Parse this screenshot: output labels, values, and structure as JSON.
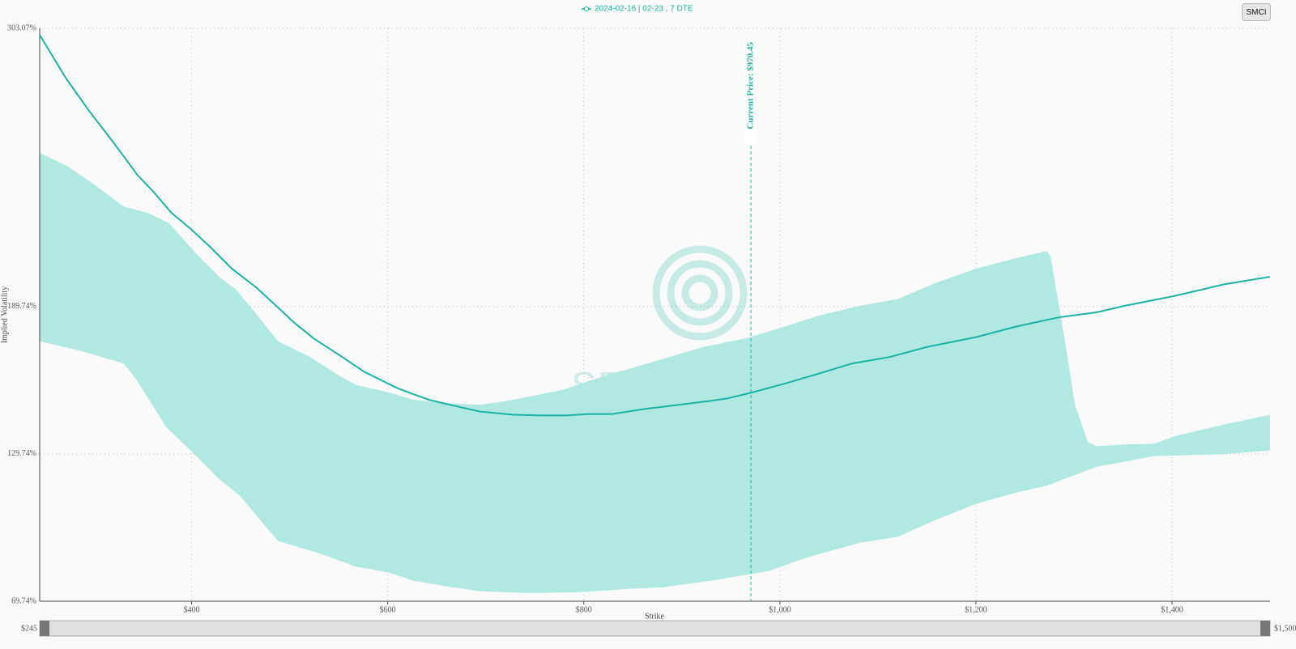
{
  "chart_data": {
    "type": "line",
    "button": "SMCI",
    "watermark": "SPOTGAMMA",
    "xlabel": "Strike",
    "ylabel": "Implied Volatility",
    "xlim": [
      245,
      1500
    ],
    "ylim": [
      69.74,
      303.07
    ],
    "xticks": [
      {
        "value": 400,
        "label": "$400"
      },
      {
        "value": 600,
        "label": "$600"
      },
      {
        "value": 800,
        "label": "$800"
      },
      {
        "value": 1000,
        "label": "$1,000"
      },
      {
        "value": 1200,
        "label": "$1,200"
      },
      {
        "value": 1400,
        "label": "$1,400"
      }
    ],
    "yticks": [
      {
        "value": 69.74,
        "label": "69.74%"
      },
      {
        "value": 129.74,
        "label": "129.74%"
      },
      {
        "value": 189.74,
        "label": "189.74%"
      },
      {
        "value": 303.07,
        "label": "303.07%"
      }
    ],
    "grid": true,
    "slider_labels": [
      "$245",
      "$1,500"
    ],
    "current_price": {
      "value": 970.45,
      "label": "Current Price: $970.45"
    },
    "series": [
      {
        "name": "2024-02-16 | 02-23 , 7 DTE",
        "color": "#1ab3a4",
        "x": [
          245,
          272,
          296,
          320,
          345,
          361,
          379,
          399,
          420,
          441,
          466,
          488,
          504,
          525,
          551,
          576,
          610,
          626,
          642,
          664,
          694,
          728,
          757,
          783,
          804,
          829,
          863,
          896,
          930,
          947,
          972,
          1006,
          1040,
          1074,
          1112,
          1150,
          1200,
          1242,
          1285,
          1323,
          1352,
          1403,
          1453,
          1500
        ],
        "values": [
          300.4,
          282.6,
          269.1,
          256.7,
          243.2,
          236.5,
          228.1,
          221.4,
          213.6,
          205.2,
          197.5,
          189.4,
          183.4,
          176.6,
          169.9,
          163.2,
          156.5,
          154.1,
          151.8,
          149.7,
          147.0,
          145.7,
          145.4,
          145.4,
          146.0,
          146.0,
          148.1,
          149.7,
          151.4,
          152.4,
          154.8,
          158.5,
          162.5,
          166.6,
          169.2,
          173.3,
          177.3,
          181.7,
          185.4,
          187.4,
          190.1,
          194.1,
          198.8,
          201.9
        ]
      }
    ],
    "band": {
      "color": "#b0e8e2",
      "upper": {
        "x": [
          245,
          272,
          297,
          331,
          356,
          377,
          403,
          428,
          445,
          466,
          488,
          521,
          551,
          568,
          601,
          626,
          660,
          694,
          728,
          778,
          821,
          871,
          922,
          964,
          998,
          1040,
          1082,
          1120,
          1158,
          1200,
          1242,
          1272,
          1276,
          1289,
          1301,
          1314,
          1323,
          1352,
          1382,
          1403,
          1453,
          1500
        ],
        "values": [
          252.3,
          247.2,
          240.5,
          230.4,
          227.8,
          223.7,
          212.0,
          201.9,
          196.8,
          186.7,
          175.6,
          169.2,
          161.5,
          157.8,
          154.8,
          151.8,
          150.4,
          149.7,
          151.8,
          155.8,
          161.5,
          167.3,
          173.3,
          176.7,
          180.7,
          186.1,
          190.1,
          192.8,
          199.2,
          205.2,
          209.6,
          212.3,
          210.3,
          180.0,
          149.7,
          134.6,
          132.9,
          133.6,
          133.9,
          137.0,
          141.7,
          145.7
        ]
      },
      "lower": {
        "x": [
          245,
          289,
          331,
          344,
          374,
          403,
          428,
          449,
          488,
          530,
          568,
          601,
          626,
          660,
          694,
          744,
          795,
          846,
          879,
          930,
          989,
          1027,
          1082,
          1120,
          1158,
          1200,
          1242,
          1272,
          1323,
          1382,
          1453,
          1500
        ],
        "values": [
          175.6,
          171.5,
          166.5,
          159.8,
          140.7,
          129.6,
          119.5,
          112.8,
          94.3,
          89.3,
          83.8,
          81.5,
          78.1,
          75.8,
          73.8,
          73.1,
          73.4,
          74.8,
          75.4,
          78.1,
          82.1,
          87.5,
          93.6,
          96.0,
          102.7,
          109.4,
          114.1,
          116.8,
          124.5,
          128.9,
          129.6,
          131.2
        ]
      }
    }
  }
}
